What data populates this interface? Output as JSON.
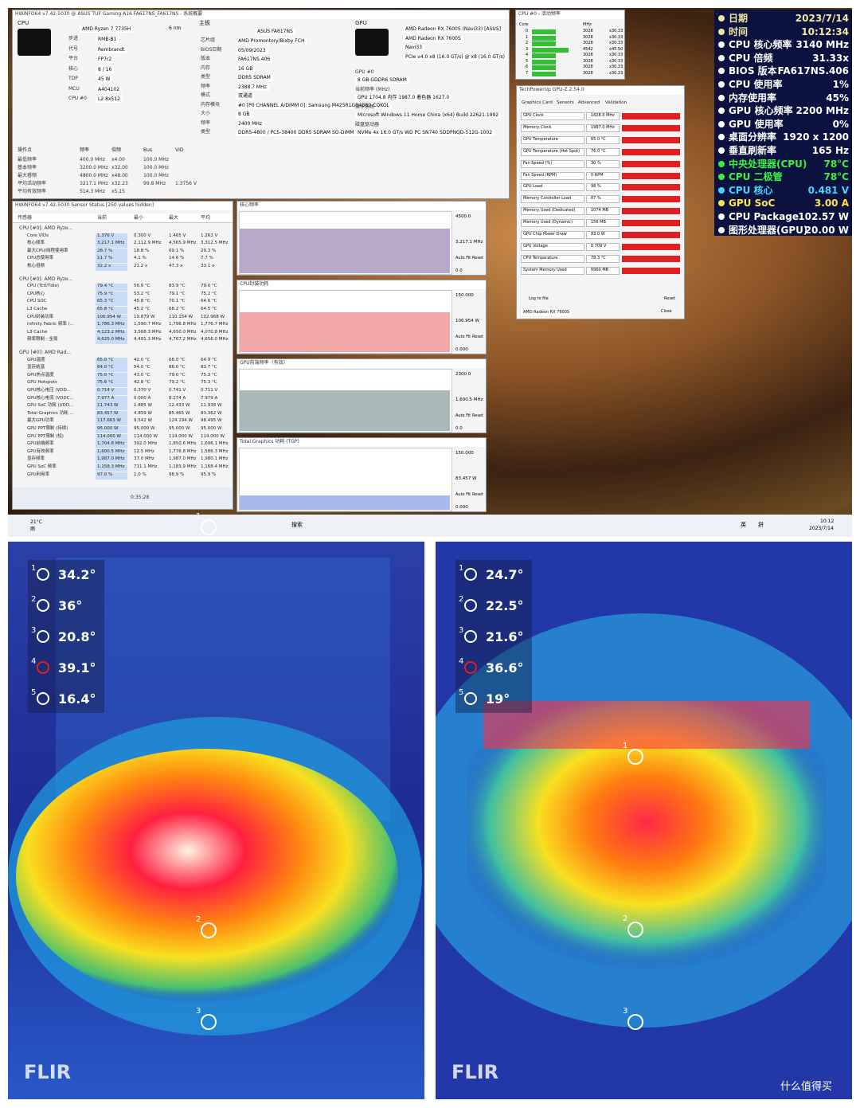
{
  "desktop": {
    "summary": {
      "title": "HWiNFO64 v7.42-5030 @ ASUS TUF Gaming A16 FA617NS_FA617NS - 系统概要",
      "cpu_head": "CPU",
      "cpu_name": "AMD Ryzen 7 7735H",
      "cpu_nm": "6 nm",
      "cpu_fields": [
        [
          "步进",
          "RMB-B1"
        ],
        [
          "代号",
          "Rembrandt"
        ],
        [
          "平台",
          "FP7r2"
        ],
        [
          "核心",
          "8 / 16"
        ],
        [
          "TDP",
          "45 W"
        ],
        [
          "MCU",
          "A404102"
        ],
        [
          "CPU #0",
          "L2 8x512"
        ]
      ],
      "mobo_head": "主板",
      "mobo_name": "ASUS FA617NS",
      "mobo_fields": [
        [
          "芯片组",
          "AMD Promontory/Bixby FCH"
        ],
        [
          "BIOS日期",
          "05/09/2023"
        ],
        [
          "版本",
          "FA617NS.406"
        ],
        [
          "内存",
          "16 GB"
        ],
        [
          "类型",
          "DDR5 SDRAM"
        ],
        [
          "频率",
          "2388.7 MHz"
        ],
        [
          "模式",
          "双通道"
        ],
        [
          "内存模块",
          "#0 [P0 CHANNEL A/DIMM 0]: Samsung M425R1GB4BB0-CQKOL"
        ],
        [
          "大小",
          "8 GB"
        ],
        [
          "频率",
          "2400 MHz"
        ],
        [
          "类型",
          "DDR5-4800 / PC5-38400 DDR5 SDRAM SO-DIMM"
        ]
      ],
      "gpu_head": "GPU",
      "gpu_fields": [
        [
          "",
          "AMD Radeon RX 7600S (Navi33) [ASUS]"
        ],
        [
          "",
          "AMD Radeon RX 7600S"
        ],
        [
          "",
          "Navi33"
        ],
        [
          "",
          "PCIe v4.0 x8 (16.0 GT/s) @ x8 (16.0 GT/s)"
        ],
        [
          "GPU #0",
          "8 GB GDDR6 SDRAM"
        ],
        [
          "当前频率 (MHz)",
          "GPU 1704.8  内存 1987.0  着色器 1627.0"
        ],
        [
          "操作系统",
          "Microsoft Windows 11 Home China (x64) Build 22621.1992"
        ],
        [
          "磁盘驱动器",
          "NVMe 4x 16.0 GT/s  WD PC SN740 SDDPNQD-512G-1002"
        ]
      ],
      "ops_header": [
        "操作点",
        "频率",
        "倍频",
        "Bus",
        "VID"
      ],
      "ops_rows": [
        [
          "最低频率",
          "400.0 MHz",
          "x4.00",
          "100.0 MHz"
        ],
        [
          "基本频率",
          "3200.0 MHz",
          "x32.00",
          "100.0 MHz"
        ],
        [
          "最大睿频",
          "4800.0 MHz",
          "x48.00",
          "100.0 MHz"
        ],
        [
          "平均活动频率",
          "3217.1 MHz",
          "x32.23",
          "99.8 MHz",
          "1.3756 V"
        ],
        [
          "平均有效频率",
          "514.3 MHz",
          "x5.15"
        ]
      ]
    },
    "sensors": {
      "title": "HWiNFO64 v7.42-5030 Sensor Status [250 values hidden]",
      "columns": [
        "传感器",
        "当前",
        "最小",
        "最大",
        "平均"
      ],
      "clock": "0:35:28",
      "groups": [
        {
          "name": "CPU [#0]: AMD Ryze...",
          "rows": [
            [
              "Core VIDs",
              "1.376 V",
              "0.300 V",
              "1.465 V",
              "1.262 V"
            ],
            [
              "核心频率",
              "3,217.1 MHz",
              "2,112.9 MHz",
              "4,565.9 MHz",
              "3,312.5 MHz"
            ],
            [
              "最大CPU/线程使用率",
              "28.7 %",
              "18.8 %",
              "69.1 %",
              "29.3 %"
            ],
            [
              "CPU总使用率",
              "11.7 %",
              "4.1 %",
              "14.6 %",
              "7.7 %"
            ],
            [
              "核心倍频",
              "32.2 x",
              "21.2 x",
              "47.3 x",
              "33.1 x"
            ]
          ]
        },
        {
          "name": "CPU [#0]: AMD Ryze...",
          "rows": [
            [
              "CPU (Tctl/Tdie)",
              "79.4 °C",
              "56.9 °C",
              "83.9 °C",
              "79.0 °C"
            ],
            [
              "CPU核心",
              "75.9 °C",
              "53.2 °C",
              "79.1 °C",
              "75.2 °C"
            ],
            [
              "CPU SOC",
              "65.3 °C",
              "45.8 °C",
              "70.1 °C",
              "64.6 °C"
            ],
            [
              "L3 Cache",
              "65.8 °C",
              "45.2 °C",
              "68.2 °C",
              "64.5 °C"
            ],
            [
              "CPU封装功率",
              "106.954 W",
              "19.879 W",
              "110.154 W",
              "102.968 W"
            ],
            [
              "Infinity Fabric 频率 (...",
              "1,786.3 MHz",
              "1,590.7 MHz",
              "1,796.8 MHz",
              "1,776.7 MHz"
            ],
            [
              "L3 Cache",
              "4,123.2 MHz",
              "3,568.3 MHz",
              "4,650.0 MHz",
              "4,070.8 MHz"
            ],
            [
              "频率限制 - 全局",
              "4,625.0 MHz",
              "4,491.3 MHz",
              "4,767.2 MHz",
              "4,656.0 MHz"
            ]
          ]
        },
        {
          "name": "GPU [#0]: AMD Rad...",
          "rows": [
            [
              "GPU温度",
              "65.0 °C",
              "42.0 °C",
              "68.0 °C",
              "64.9 °C"
            ],
            [
              "显存结温",
              "84.0 °C",
              "54.0 °C",
              "86.0 °C",
              "83.7 °C"
            ],
            [
              "GPU热点温度",
              "75.0 °C",
              "43.0 °C",
              "79.0 °C",
              "75.3 °C"
            ],
            [
              "GPU Hotspots",
              "75.6 °C",
              "42.8 °C",
              "79.2 °C",
              "75.3 °C"
            ],
            [
              "GPU核心电压 (VDD...",
              "0.714 V",
              "0.370 V",
              "0.741 V",
              "0.711 V"
            ],
            [
              "GPU核心电流 (VDDC...",
              "7.977 A",
              "0.000 A",
              "8.274 A",
              "7.979 A"
            ],
            [
              "GPU SoC 功耗 (VDD...",
              "11.743 W",
              "1.885 W",
              "12.433 W",
              "11.938 W"
            ],
            [
              "Total Graphics 功耗 ...",
              "83.457 W",
              "4.859 W",
              "85.465 W",
              "83.362 W"
            ],
            [
              "最大GPU功率",
              "117.663 W",
              "9.542 W",
              "124.194 W",
              "98.495 W"
            ],
            [
              "GPU PPT限制 (持续)",
              "95.000 W",
              "95.000 W",
              "95.000 W",
              "95.000 W"
            ],
            [
              "GPU PPT限制 (短)",
              "114.000 W",
              "114.000 W",
              "114.000 W",
              "114.000 W"
            ],
            [
              "GPU前端频率",
              "1,704.8 MHz",
              "392.0 MHz",
              "1,850.6 MHz",
              "1,696.1 MHz"
            ],
            [
              "GPU有效频率",
              "1,600.5 MHz",
              "12.5 MHz",
              "1,776.8 MHz",
              "1,586.3 MHz"
            ],
            [
              "显存频率",
              "1,987.0 MHz",
              "37.0 MHz",
              "1,987.0 MHz",
              "1,980.1 MHz"
            ],
            [
              "GPU SoC 频率",
              "1,158.3 MHz",
              "711.1 MHz",
              "1,183.9 MHz",
              "1,168.4 MHz"
            ],
            [
              "GPU利用率",
              "97.0 %",
              "1.0 %",
              "98.9 %",
              "95.9 %"
            ]
          ]
        }
      ]
    },
    "graphs": [
      {
        "title": "核心频率",
        "top": "4500.0",
        "current": "3,217.1 MHz",
        "bottom": "0.0",
        "color": "#b9a9c9"
      },
      {
        "title": "CPU封装功耗",
        "top": "150.000",
        "current": "106.954 W",
        "bottom": "0.000",
        "color": "#f2a8a8"
      },
      {
        "title": "GPU前端频率（有效）",
        "top": "2300.0",
        "current": "1,600.5 MHz",
        "bottom": "0.0",
        "color": "#a9b9b9"
      },
      {
        "title": "Total Graphics 功耗 (TGP)",
        "top": "150.000",
        "current": "83.457 W",
        "bottom": "0.000",
        "color": "#a9b9ec"
      }
    ],
    "graph_buttons": [
      "Auto Fit",
      "Reset"
    ],
    "cpu_activity": {
      "title": "CPU #0 - 活动频率",
      "columns": [
        "Core",
        "MHz"
      ],
      "rows": [
        [
          "0",
          "3028",
          "x30.33"
        ],
        [
          "1",
          "3028",
          "x30.33"
        ],
        [
          "2",
          "3028",
          "x30.33"
        ],
        [
          "3",
          "4542",
          "x45.50"
        ],
        [
          "4",
          "3028",
          "x30.33"
        ],
        [
          "5",
          "3028",
          "x30.33"
        ],
        [
          "6",
          "3028",
          "x30.33"
        ],
        [
          "7",
          "3028",
          "x30.33"
        ]
      ]
    },
    "gpuz": {
      "title": "TechPowerUp GPU-Z 2.54.0",
      "tabs": [
        "Graphics Card",
        "Sensors",
        "Advanced",
        "Validation"
      ],
      "sensors": [
        [
          "GPU Clock",
          "1628.0 MHz"
        ],
        [
          "Memory Clock",
          "1987.0 MHz"
        ],
        [
          "GPU Temperature",
          "65.0 °C"
        ],
        [
          "GPU Temperature (Hot Spot)",
          "76.0 °C"
        ],
        [
          "Fan Speed (%)",
          "30 %"
        ],
        [
          "Fan Speed (RPM)",
          "0 RPM"
        ],
        [
          "GPU Load",
          "98 %"
        ],
        [
          "Memory Controller Load",
          "67 %"
        ],
        [
          "Memory Used (Dedicated)",
          "1074 MB"
        ],
        [
          "Memory Used (Dynamic)",
          "156 MB"
        ],
        [
          "GPU Chip Power Draw",
          "83.0 W"
        ],
        [
          "GPU Voltage",
          "0.709 V"
        ],
        [
          "CPU Temperature",
          "78.3 °C"
        ],
        [
          "System Memory Used",
          "6960 MB"
        ]
      ],
      "log": "Log to file",
      "reset": "Reset",
      "device": "AMD Radeon RX 7600S",
      "close": "Close"
    },
    "osd": [
      {
        "label": "日期",
        "value": "2023/7/14",
        "color": "#f5e9a0"
      },
      {
        "label": "时间",
        "value": "10:12:34",
        "color": "#f5e9a0"
      },
      {
        "label": "CPU 核心频率",
        "value": "3140 MHz",
        "color": "#ffffff"
      },
      {
        "label": "CPU 倍频",
        "value": "31.33x",
        "color": "#ffffff"
      },
      {
        "label": "BIOS 版本",
        "value": "FA617NS.406",
        "color": "#ffffff"
      },
      {
        "label": "CPU 使用率",
        "value": "1%",
        "color": "#ffffff"
      },
      {
        "label": "内存使用率",
        "value": "45%",
        "color": "#ffffff"
      },
      {
        "label": "GPU 核心频率",
        "value": "2200 MHz",
        "color": "#ffffff"
      },
      {
        "label": "GPU 使用率",
        "value": "0%",
        "color": "#ffffff"
      },
      {
        "label": "桌面分辨率",
        "value": "1920 x 1200",
        "color": "#ffffff"
      },
      {
        "label": "垂直刷新率",
        "value": "165 Hz",
        "color": "#ffffff"
      },
      {
        "label": "中央处理器(CPU)",
        "value": "78°C",
        "color": "#3ef03e"
      },
      {
        "label": "CPU 二极管",
        "value": "78°C",
        "color": "#3ef03e"
      },
      {
        "label": "CPU 核心",
        "value": "0.481 V",
        "color": "#45d4ff"
      },
      {
        "label": "GPU SoC",
        "value": "3.00 A",
        "color": "#ffe64a"
      },
      {
        "label": "CPU Package",
        "value": "102.57 W",
        "color": "#ffffff"
      },
      {
        "label": "图形处理器(GPU)",
        "value": "20.00 W",
        "color": "#ffffff"
      }
    ],
    "taskbar": {
      "temp": "21°C",
      "weather": "雨",
      "search": "搜索",
      "ime1": "英",
      "ime2": "拼",
      "time": "10:12",
      "date": "2023/7/14"
    }
  },
  "thermal": {
    "brand": "FLIR",
    "watermark": "什么值得买",
    "left": [
      {
        "n": 1,
        "value": "34.2°"
      },
      {
        "n": 2,
        "value": "36°"
      },
      {
        "n": 3,
        "value": "20.8°"
      },
      {
        "n": 4,
        "value": "39.1°"
      },
      {
        "n": 5,
        "value": "16.4°"
      }
    ],
    "right": [
      {
        "n": 1,
        "value": "24.7°"
      },
      {
        "n": 2,
        "value": "22.5°"
      },
      {
        "n": 3,
        "value": "21.6°"
      },
      {
        "n": 4,
        "value": "36.6°"
      },
      {
        "n": 5,
        "value": "19°"
      }
    ]
  }
}
